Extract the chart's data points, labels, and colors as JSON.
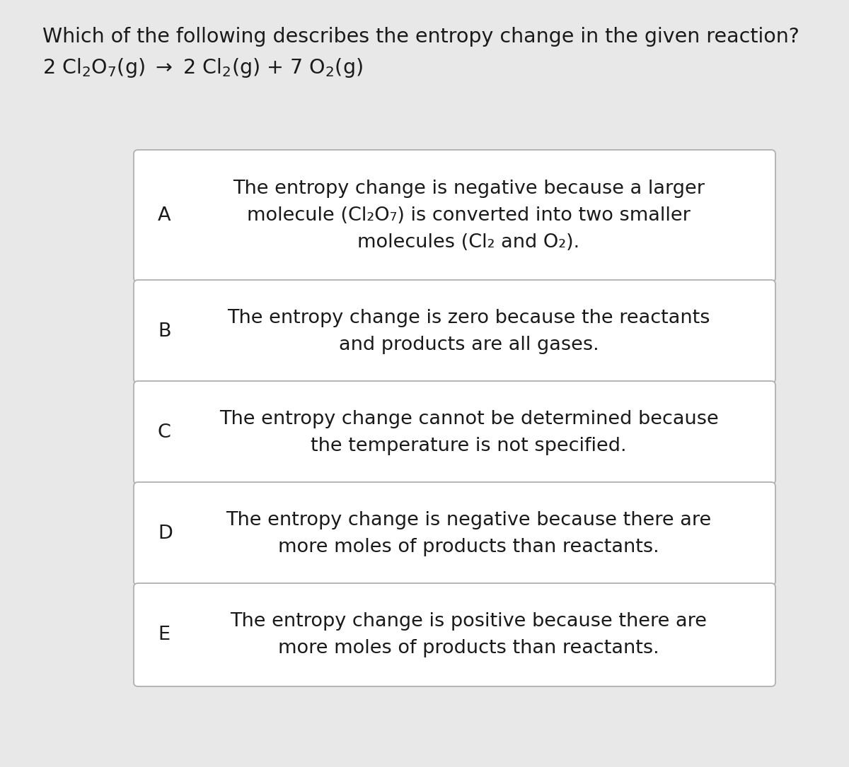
{
  "bg_color": "#e8e8e8",
  "box_bg_color": "#ffffff",
  "box_border_color": "#b0b0b0",
  "text_color": "#1a1a1a",
  "title_line1": "Which of the following describes the entropy change in the given reaction?",
  "options": [
    {
      "label": "A",
      "lines": [
        "The entropy change is negative because a larger",
        "molecule (Cl₂O₇) is converted into two smaller",
        "molecules (Cl₂ and O₂)."
      ],
      "n_lines": 3
    },
    {
      "label": "B",
      "lines": [
        "The entropy change is zero because the reactants",
        "and products are all gases."
      ],
      "n_lines": 2
    },
    {
      "label": "C",
      "lines": [
        "The entropy change cannot be determined because",
        "the temperature is not specified."
      ],
      "n_lines": 2
    },
    {
      "label": "D",
      "lines": [
        "The entropy change is negative because there are",
        "more moles of products than reactants."
      ],
      "n_lines": 2
    },
    {
      "label": "E",
      "lines": [
        "The entropy change is positive because there are",
        "more moles of products than reactants."
      ],
      "n_lines": 2
    }
  ],
  "fig_width": 12.0,
  "fig_height": 10.85,
  "dpi": 100,
  "title_fontsize": 20.5,
  "option_fontsize": 19.5,
  "label_fontsize": 19.5
}
